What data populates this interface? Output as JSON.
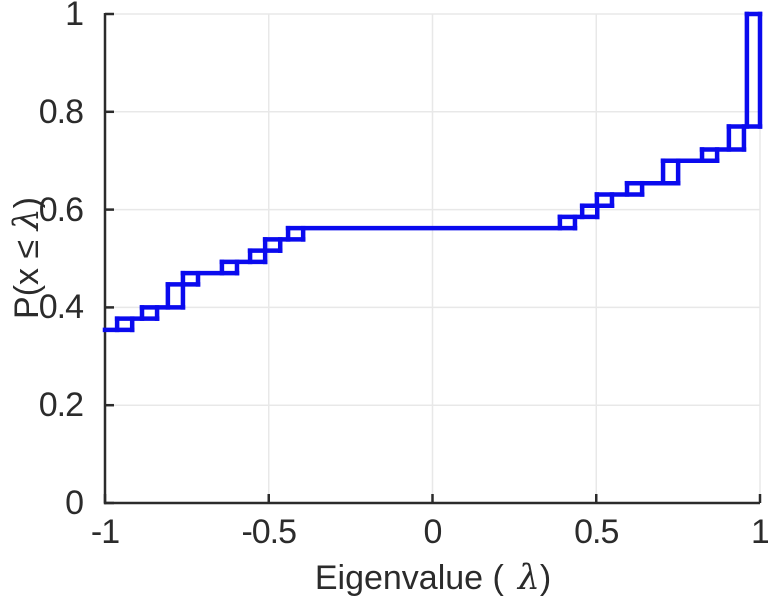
{
  "chart_data": {
    "type": "step",
    "title": "",
    "xlabel": "Eigenvalue ( λ)",
    "ylabel": "P(x ≤ λ)",
    "xlabel_parts": {
      "pre": "Eigenvalue (",
      "lambda": "λ",
      "post": ")"
    },
    "ylabel_parts": {
      "pre": "P(x ",
      "leq": "≤ ",
      "lambda": "λ",
      "post": ")"
    },
    "xlim": [
      -1,
      1
    ],
    "ylim": [
      0,
      1
    ],
    "xticks": [
      -1,
      -0.5,
      0,
      0.5,
      1
    ],
    "xtick_labels": [
      "-1",
      "-0.5",
      "0",
      "0.5",
      "1"
    ],
    "yticks": [
      0,
      0.2,
      0.4,
      0.6,
      0.8,
      1
    ],
    "ytick_labels": [
      "0",
      "0.2",
      "0.4",
      "0.6",
      "0.8",
      "1"
    ],
    "grid": "on",
    "box": "off",
    "legend": null,
    "line_color": "#0a0aee",
    "line_width": 4.5,
    "axis_color": "#2b2b2b",
    "grid_color": "#e8e8e8",
    "ecdf": {
      "start_p": 0.354,
      "step_width_x": 0.046,
      "steps": [
        {
          "x": -0.963,
          "p": 0.377
        },
        {
          "x": -0.887,
          "p": 0.4
        },
        {
          "x": -0.808,
          "p": 0.447
        },
        {
          "x": -0.762,
          "p": 0.47
        },
        {
          "x": -0.643,
          "p": 0.493
        },
        {
          "x": -0.557,
          "p": 0.516
        },
        {
          "x": -0.511,
          "p": 0.539
        },
        {
          "x": -0.441,
          "p": 0.562
        },
        {
          "x": 0.389,
          "p": 0.585
        },
        {
          "x": 0.457,
          "p": 0.608
        },
        {
          "x": 0.502,
          "p": 0.631
        },
        {
          "x": 0.594,
          "p": 0.654
        },
        {
          "x": 0.704,
          "p": 0.7
        },
        {
          "x": 0.823,
          "p": 0.723
        },
        {
          "x": 0.905,
          "p": 0.77
        },
        {
          "x": 0.96,
          "p": 1.0
        }
      ]
    }
  }
}
